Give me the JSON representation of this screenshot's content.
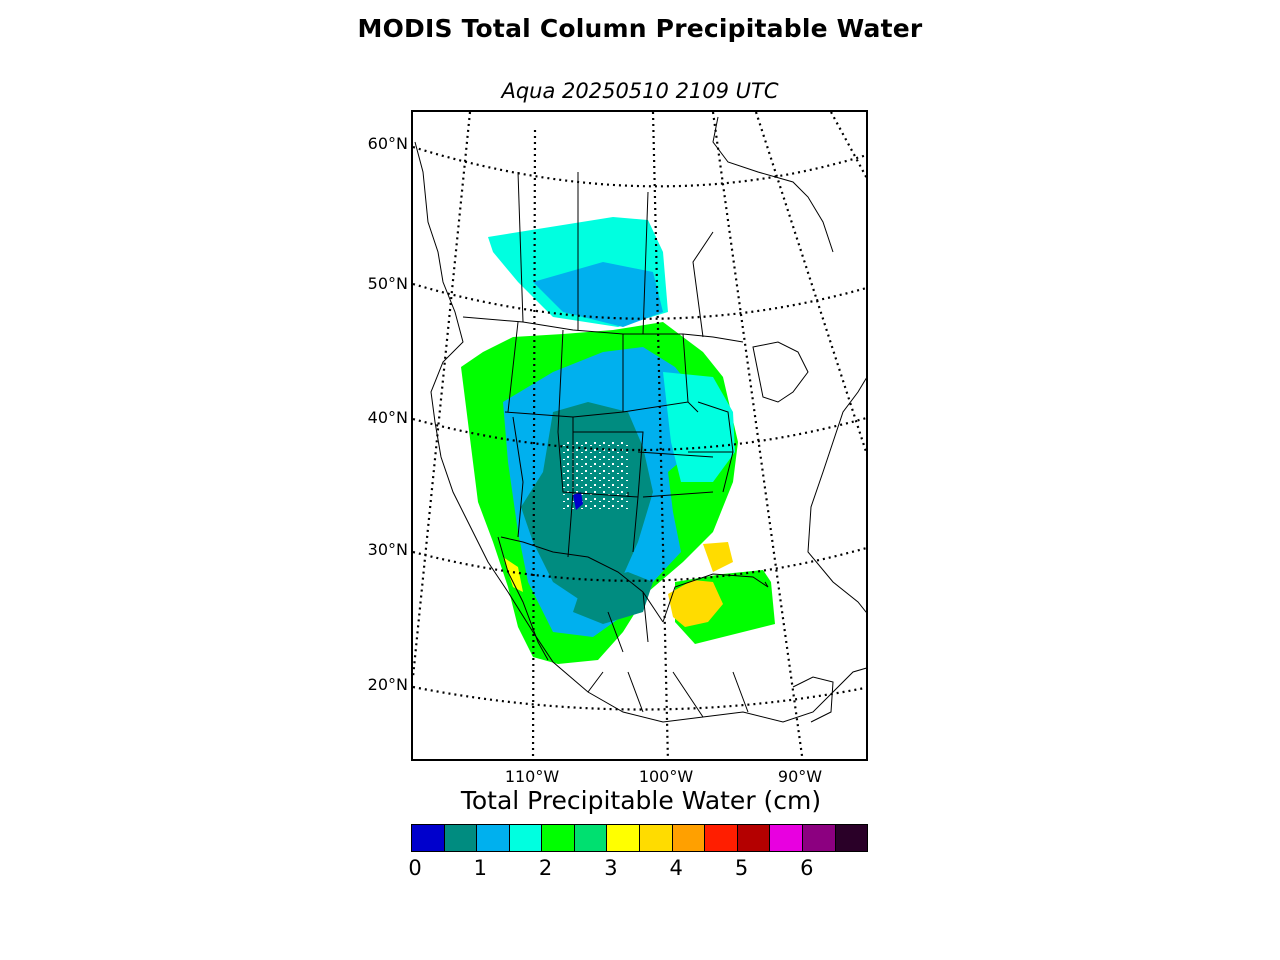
{
  "title": "MODIS Total Column Precipitable Water",
  "subtitle": "Aqua 20250510 2109 UTC",
  "colorbar": {
    "title": "Total Precipitable Water (cm)",
    "ticks": [
      "0",
      "1",
      "2",
      "3",
      "4",
      "5",
      "6"
    ],
    "colors": [
      "#0000cc",
      "#008c80",
      "#00b0ee",
      "#00ffe0",
      "#00ff00",
      "#00e070",
      "#ffff00",
      "#ffdc00",
      "#ffa000",
      "#ff1e00",
      "#b40000",
      "#e800e0",
      "#8c0080",
      "#2a0028"
    ]
  },
  "map": {
    "lat_labels": [
      "60°N",
      "50°N",
      "40°N",
      "30°N",
      "20°N"
    ],
    "lon_labels": [
      "110°W",
      "100°W",
      "90°W"
    ],
    "land_color": "#ffffff",
    "outline_color": "#000000"
  }
}
